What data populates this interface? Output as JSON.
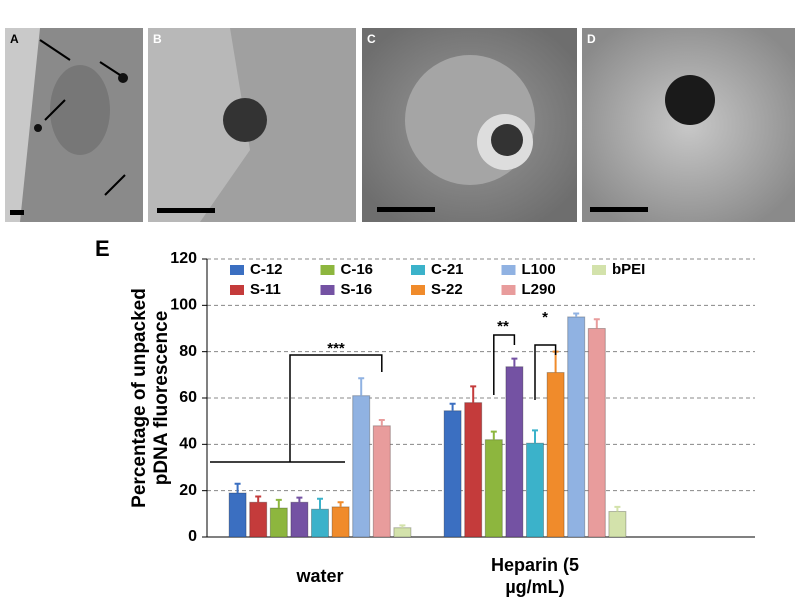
{
  "panels": [
    "A",
    "B",
    "C",
    "D"
  ],
  "chart_data": {
    "type": "bar",
    "panel_label": "E",
    "ylabel": [
      "Percentage of unpacked",
      "pDNA fluorescence"
    ],
    "categories": [
      "water",
      "Heparin (5 µg/mL)"
    ],
    "ylim": [
      0,
      120
    ],
    "yticks": [
      0,
      20,
      40,
      60,
      80,
      100,
      120
    ],
    "grid": true,
    "series": [
      {
        "name": "C-12",
        "color": "#3b6fc1",
        "values": [
          19,
          54.5
        ],
        "errors": [
          4,
          3
        ]
      },
      {
        "name": "S-11",
        "color": "#c43b3b",
        "values": [
          15,
          58
        ],
        "errors": [
          2.5,
          7
        ]
      },
      {
        "name": "C-16",
        "color": "#8db63e",
        "values": [
          12.5,
          42
        ],
        "errors": [
          3.5,
          3.5
        ]
      },
      {
        "name": "S-16",
        "color": "#7452a3",
        "values": [
          15,
          73.5
        ],
        "errors": [
          2,
          3.5
        ]
      },
      {
        "name": "C-21",
        "color": "#3bb2ca",
        "values": [
          12,
          40.5
        ],
        "errors": [
          4.5,
          5.5
        ]
      },
      {
        "name": "S-22",
        "color": "#f08b2b",
        "values": [
          13,
          71
        ],
        "errors": [
          2,
          9
        ]
      },
      {
        "name": "L100",
        "color": "#90b2e2",
        "values": [
          61,
          95
        ],
        "errors": [
          7.5,
          1.5
        ]
      },
      {
        "name": "L290",
        "color": "#e89c9c",
        "values": [
          48,
          90
        ],
        "errors": [
          2.5,
          4
        ]
      },
      {
        "name": "bPEI",
        "color": "#d3e2ab",
        "values": [
          4,
          11
        ],
        "errors": [
          1,
          2
        ]
      }
    ],
    "annotations": [
      "***",
      "**",
      "*"
    ]
  }
}
